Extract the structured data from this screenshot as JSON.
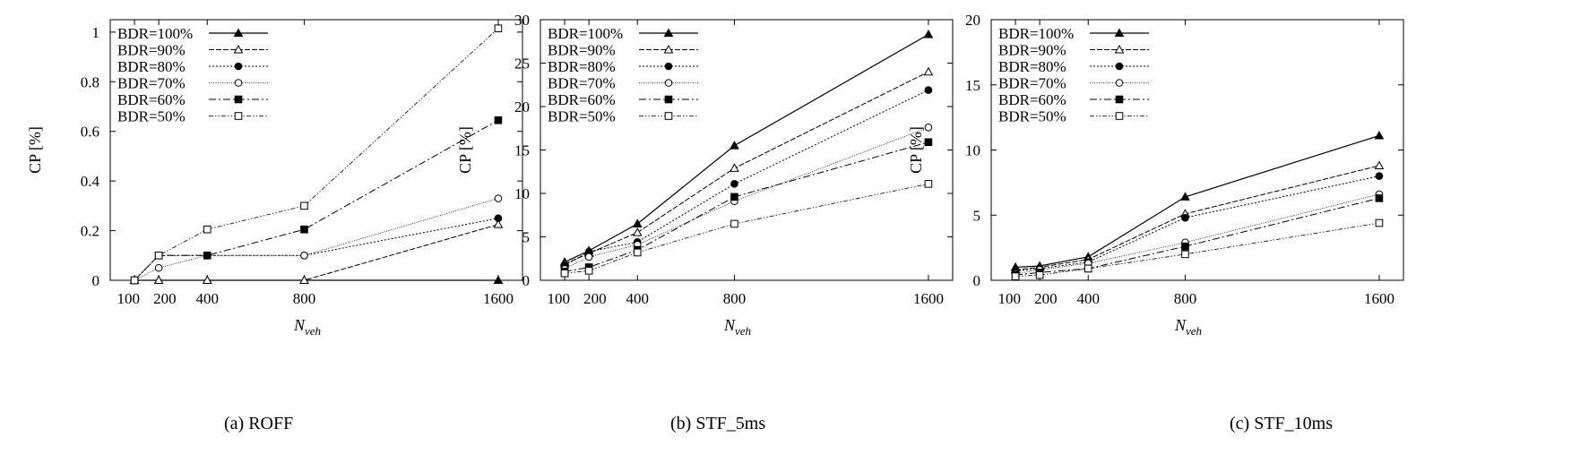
{
  "chart_data": [
    {
      "type": "line",
      "caption": "(a) ROFF",
      "xlabel": "N",
      "xlabel_sub": "veh",
      "ylabel": "CP [%]",
      "x": [
        100,
        200,
        400,
        800,
        1600
      ],
      "x_tick_labels": [
        "100",
        "200",
        "400",
        "800",
        "1600"
      ],
      "xlim": [
        0,
        1700
      ],
      "ylim": [
        0,
        1.05
      ],
      "y_ticks": [
        0,
        0.2,
        0.4,
        0.6,
        0.8,
        1
      ],
      "y_tick_labels": [
        "0",
        "0.2",
        "0.4",
        "0.6",
        "0.8",
        "1"
      ],
      "grid": false,
      "legend_position": "top-left",
      "series": [
        {
          "name": "BDR=100%",
          "values": [
            0,
            0,
            0,
            0,
            0
          ]
        },
        {
          "name": "BDR=90%",
          "values": [
            0,
            0,
            0,
            0,
            0.225
          ]
        },
        {
          "name": "BDR=80%",
          "values": [
            0,
            0.1,
            0.1,
            0.1,
            0.25
          ]
        },
        {
          "name": "BDR=70%",
          "values": [
            0,
            0.05,
            0.1,
            0.1,
            0.33
          ]
        },
        {
          "name": "BDR=60%",
          "values": [
            0,
            0.1,
            0.1,
            0.205,
            0.645
          ]
        },
        {
          "name": "BDR=50%",
          "values": [
            0,
            0.1,
            0.205,
            0.3,
            1.015
          ]
        }
      ]
    },
    {
      "type": "line",
      "caption": "(b) STF_5ms",
      "xlabel": "N",
      "xlabel_sub": "veh",
      "ylabel": "CP [%]",
      "x": [
        100,
        200,
        400,
        800,
        1600
      ],
      "x_tick_labels": [
        "100",
        "200",
        "400",
        "800",
        "1600"
      ],
      "xlim": [
        0,
        1700
      ],
      "ylim": [
        0,
        30
      ],
      "y_ticks": [
        0,
        5,
        10,
        15,
        20,
        25,
        30
      ],
      "y_tick_labels": [
        "0",
        "5",
        "10",
        "15",
        "20",
        "25",
        "30"
      ],
      "grid": false,
      "legend_position": "top-left",
      "series": [
        {
          "name": "BDR=100%",
          "values": [
            2.1,
            3.4,
            6.5,
            15.5,
            28.3
          ]
        },
        {
          "name": "BDR=90%",
          "values": [
            1.9,
            3.1,
            5.5,
            12.9,
            24.0
          ]
        },
        {
          "name": "BDR=80%",
          "values": [
            1.7,
            3.3,
            4.4,
            11.1,
            21.9
          ]
        },
        {
          "name": "BDR=70%",
          "values": [
            1.3,
            2.7,
            4.1,
            9.1,
            17.6
          ]
        },
        {
          "name": "BDR=60%",
          "values": [
            1.0,
            1.5,
            3.5,
            9.6,
            15.9
          ]
        },
        {
          "name": "BDR=50%",
          "values": [
            0.8,
            1.1,
            3.2,
            6.5,
            11.1
          ]
        }
      ]
    },
    {
      "type": "line",
      "caption": "(c) STF_10ms",
      "xlabel": "N",
      "xlabel_sub": "veh",
      "ylabel": "CP [%]",
      "x": [
        100,
        200,
        400,
        800,
        1600
      ],
      "x_tick_labels": [
        "100",
        "200",
        "400",
        "800",
        "1600"
      ],
      "xlim": [
        0,
        1700
      ],
      "ylim": [
        0,
        20
      ],
      "y_ticks": [
        0,
        5,
        10,
        15,
        20
      ],
      "y_tick_labels": [
        "0",
        "5",
        "10",
        "15",
        "20"
      ],
      "grid": false,
      "legend_position": "top-left",
      "series": [
        {
          "name": "BDR=100%",
          "values": [
            1.0,
            1.1,
            1.8,
            6.4,
            11.1
          ]
        },
        {
          "name": "BDR=90%",
          "values": [
            0.8,
            1.0,
            1.6,
            5.1,
            8.8
          ]
        },
        {
          "name": "BDR=80%",
          "values": [
            0.7,
            0.9,
            1.4,
            4.8,
            8.0
          ]
        },
        {
          "name": "BDR=70%",
          "values": [
            0.5,
            0.8,
            1.3,
            2.9,
            6.6
          ]
        },
        {
          "name": "BDR=60%",
          "values": [
            0.4,
            0.6,
            0.9,
            2.6,
            6.3
          ]
        },
        {
          "name": "BDR=50%",
          "values": [
            0.3,
            0.4,
            0.9,
            2.0,
            4.4
          ]
        }
      ]
    }
  ]
}
